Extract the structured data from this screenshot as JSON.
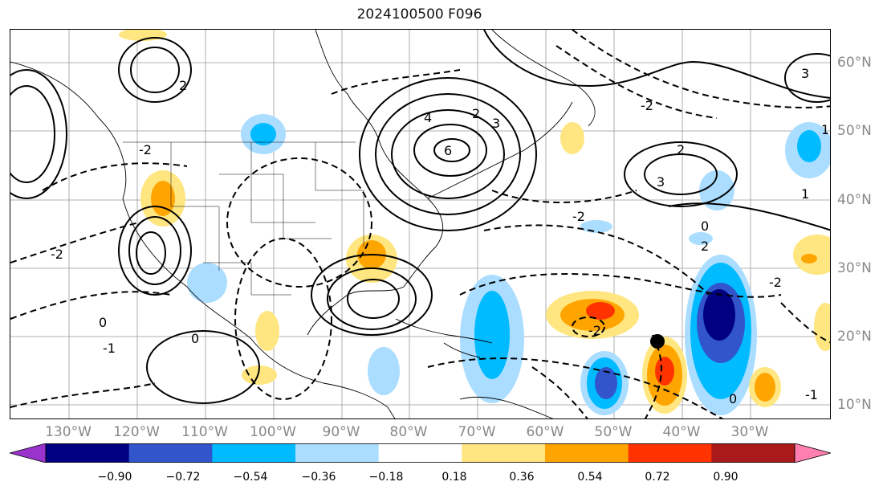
{
  "title": "2024100500 F096",
  "lon_labels": [
    "130°W",
    "120°W",
    "110°W",
    "100°W",
    "90°W",
    "80°W",
    "70°W",
    "60°W",
    "50°W",
    "40°W",
    "30°W"
  ],
  "lat_labels": [
    "60°N",
    "50°N",
    "40°N",
    "30°N",
    "20°N",
    "10°N"
  ],
  "colorbar": {
    "ticks": [
      "−0.90",
      "−0.72",
      "−0.54",
      "−0.36",
      "−0.18",
      "0.18",
      "0.36",
      "0.54",
      "0.72",
      "0.90"
    ],
    "colors": [
      "#9933cc",
      "#000080",
      "#3355cc",
      "#00bbff",
      "#aaddff",
      "#ffffff",
      "#ffe680",
      "#ffa500",
      "#ff3300",
      "#aa1a1a",
      "#ff80b0"
    ]
  },
  "contour_labels": [
    "6",
    "4",
    "3",
    "2",
    "2",
    "2",
    "3",
    "-2",
    "-2",
    "-2",
    "0",
    "0",
    "-1",
    "1",
    "-1",
    "0",
    "-2",
    "0",
    "2",
    "3",
    "-2",
    "1",
    "-2"
  ]
}
